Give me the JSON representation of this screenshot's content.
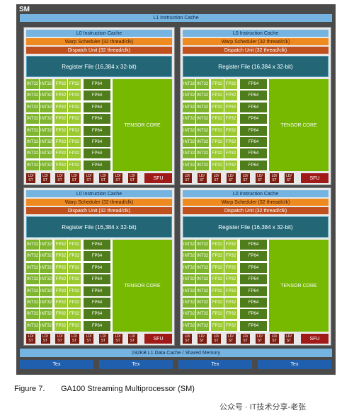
{
  "sm": {
    "title": "SM",
    "l1_instruction_cache": "L1 Instruction Cache",
    "l1_data_cache": "192KB L1 Data Cache / Shared Memory",
    "tex_label": "Tex",
    "tex_count": 4
  },
  "partition": {
    "count": 4,
    "l0_cache": "L0 Instruction Cache",
    "warp_scheduler": "Warp Scheduler (32 thread/clk)",
    "dispatch_unit": "Dispatch Unit (32 thread/clk)",
    "register_file": "Register File (16,384 x 32-bit)",
    "int32_label": "INT32",
    "fp32_label": "FP32",
    "fp64_label": "FP64",
    "tensor_core": "TENSOR CORE",
    "ldst_label": "LD/ ST",
    "ldst_top": "LD/",
    "ldst_bottom": "ST",
    "sfu": "SFU",
    "rows": 8,
    "ldst_units": 8
  },
  "caption": {
    "figure": "Figure 7.",
    "text": "GA100 Streaming Multiprocessor (SM)"
  },
  "watermark": "公众号 · IT技术分享-老张",
  "colors": {
    "background": "#4a4a4a",
    "cache": "#75b4e0",
    "warp_scheduler": "#ef8a20",
    "dispatch": "#c0501e",
    "register_file": "#236777",
    "int32": "#7fb52e",
    "fp32": "#9ac92e",
    "fp64": "#4f7d1c",
    "tensor_core": "#76b900",
    "ldst": "#7a1c10",
    "sfu": "#a11a1a",
    "tex": "#1f5fae"
  }
}
